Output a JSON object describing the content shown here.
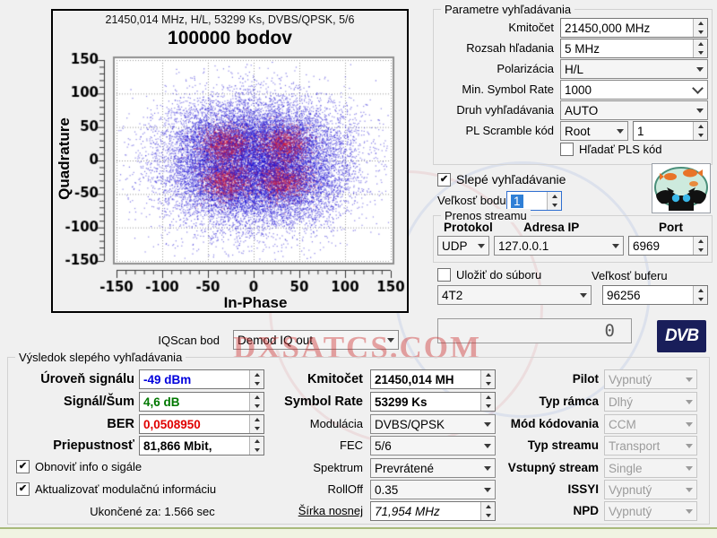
{
  "icons": {
    "check": "✔"
  },
  "chart": {
    "header": "21450,014 MHz, H/L, 53299 Ks, DVBS/QPSK, 5/6",
    "title": "100000 bodov",
    "xlabel": "In-Phase",
    "ylabel": "Quadrature"
  },
  "chart_data": {
    "type": "scatter",
    "title": "100000 bodov",
    "xlabel": "In-Phase",
    "ylabel": "Quadrature",
    "xlim": [
      -150,
      150
    ],
    "ylim": [
      -150,
      150
    ],
    "x_ticks": [
      -150,
      -100,
      -50,
      0,
      50,
      100,
      150
    ],
    "y_ticks": [
      150,
      100,
      50,
      0,
      -50,
      -100,
      -150
    ],
    "grid": true,
    "point_count": 100000,
    "clusters": [
      {
        "x": -30,
        "y": 24
      },
      {
        "x": 32,
        "y": 24
      },
      {
        "x": -30,
        "y": -30
      },
      {
        "x": 32,
        "y": -30
      }
    ],
    "cluster_sigma": 36,
    "core_sigma": 14,
    "point_color": "#2013d6",
    "core_color": "#d62039"
  },
  "search_params": {
    "title": "Parametre vyhľadávania",
    "freq_label": "Kmitočet",
    "freq_value": "21450,000 MHz",
    "range_label": "Rozsah hľadania",
    "range_value": "5 MHz",
    "polar_label": "Polarizácia",
    "polar_value": "H/L",
    "minsr_label": "Min. Symbol Rate",
    "minsr_value": "1000",
    "type_label": "Druh vyhľadávania",
    "type_value": "AUTO",
    "pls_label": "PL Scramble kód",
    "pls_mode": "Root",
    "pls_value": "1",
    "pls_search_label": "Hľadať PLS kód"
  },
  "blind": {
    "label": "Slepé vyhľadávanie",
    "dot_label": "Veľkosť bodu",
    "dot_value": "1"
  },
  "stream": {
    "title": "Prenos streamu",
    "protocol_label": "Protokol",
    "protocol_value": "UDP",
    "ip_label": "Adresa IP",
    "ip_value": "127.0.0.1",
    "port_label": "Port",
    "port_value": "6969",
    "save_label": "Uložiť do súboru",
    "buffer_label": "Veľkosť buferu",
    "format_value": "4T2",
    "buffer_value": "96256",
    "progress_digit": "0"
  },
  "iqscan": {
    "label": "IQScan bod",
    "value": "Demod IQ out"
  },
  "dvb_logo": "DVB",
  "watermark": {
    "text": "DXSATCS.COM"
  },
  "results": {
    "title": "Výsledok slepého vyhľadávania",
    "level_label": "Úroveň signálu",
    "level_value": "-49 dBm",
    "snr_label": "Signál/Šum",
    "snr_value": "4,6 dB",
    "ber_label": "BER",
    "ber_value": "0,0508950",
    "throughput_label": "Priepustnosť",
    "throughput_value": "81,866 Mbit,",
    "refresh_label": "Obnoviť info o sigále",
    "update_label": "Aktualizovať modulačnú informáciu",
    "finished_label": "Ukončené za: 1.566 sec"
  },
  "tuner": {
    "freq_label": "Kmitočet",
    "freq_value": "21450,014 MH",
    "sr_label": "Symbol Rate",
    "sr_value": "53299 Ks",
    "mod_label": "Modulácia",
    "mod_value": "DVBS/QPSK",
    "fec_label": "FEC",
    "fec_value": "5/6",
    "spectrum_label": "Spektrum",
    "spectrum_value": "Prevrátené",
    "rolloff_label": "RollOff",
    "rolloff_value": "0.35",
    "carrier_label": "Šírka nosnej",
    "carrier_value": "71,954 MHz"
  },
  "advanced": {
    "pilot_label": "Pilot",
    "pilot_value": "Vypnutý",
    "frame_label": "Typ rámca",
    "frame_value": "Dlhý",
    "coding_label": "Mód kódovania",
    "coding_value": "CCM",
    "stream_type_label": "Typ streamu",
    "stream_type_value": "Transport",
    "input_stream_label": "Vstupný stream",
    "input_stream_value": "Single",
    "issyi_label": "ISSYI",
    "issyi_value": "Vypnutý",
    "npd_label": "NPD",
    "npd_value": "Vypnutý"
  }
}
